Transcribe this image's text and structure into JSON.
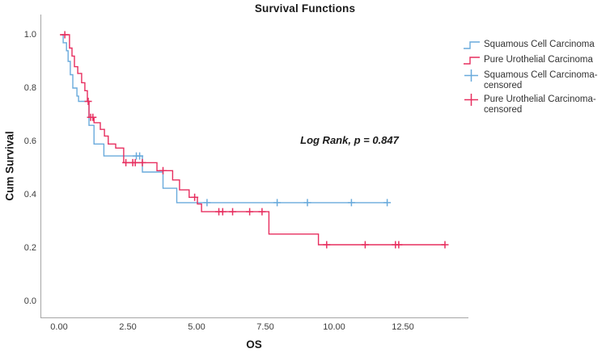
{
  "title": "Survival Functions",
  "colors": {
    "squamous": "#69aadc",
    "urothelial": "#e72e5f",
    "axis_line": "#a6a6a6",
    "tick_text": "#3c3c3c",
    "title_text": "#1a1a1a"
  },
  "legend": {
    "items": [
      {
        "label": "Squamous Cell Carcinoma",
        "marker": "step-line",
        "color_key": "squamous"
      },
      {
        "label": "Pure Urothelial Carcinoma",
        "marker": "step-line",
        "color_key": "urothelial"
      },
      {
        "label": "Squamous Cell Carcinoma-censored",
        "marker": "plus",
        "color_key": "squamous"
      },
      {
        "label": "Pure Urothelial Carcinoma-censored",
        "marker": "plus",
        "color_key": "urothelial"
      }
    ]
  },
  "chart_data": {
    "type": "line",
    "subtype": "kaplan-meier-step",
    "title": "Survival Functions",
    "xlabel": "OS",
    "ylabel": "Cum Survival",
    "annotation": "Log Rank, p = 0.847",
    "legend_position": "right",
    "grid": false,
    "xlim": [
      -0.68,
      14.85
    ],
    "ylim": [
      -0.06,
      1.08
    ],
    "xticks": {
      "values": [
        0,
        2.5,
        5,
        7.5,
        10,
        12.5
      ],
      "labels": [
        "0.00",
        "2.50",
        "5.00",
        "7.50",
        "10.00",
        "12.50"
      ]
    },
    "yticks": {
      "values": [
        0,
        0.2,
        0.4,
        0.6,
        0.8,
        1.0
      ],
      "labels": [
        "0.0",
        "0.2",
        "0.4",
        "0.6",
        "0.8",
        "1.0"
      ]
    },
    "series": [
      {
        "name": "Squamous Cell Carcinoma",
        "color_key": "squamous",
        "start_t": 0.05,
        "end_t": 11.9,
        "drops": [
          [
            0.12,
            0.97
          ],
          [
            0.24,
            0.94
          ],
          [
            0.3,
            0.9
          ],
          [
            0.38,
            0.85
          ],
          [
            0.47,
            0.8
          ],
          [
            0.62,
            0.77
          ],
          [
            0.68,
            0.75
          ],
          [
            1.06,
            0.66
          ],
          [
            1.24,
            0.59
          ],
          [
            1.6,
            0.545
          ],
          [
            3.0,
            0.485
          ],
          [
            3.75,
            0.424
          ],
          [
            4.25,
            0.37
          ]
        ],
        "censors": [
          [
            2.78,
            0.545
          ],
          [
            2.9,
            0.545
          ],
          [
            5.35,
            0.37
          ],
          [
            7.9,
            0.37
          ],
          [
            9.0,
            0.37
          ],
          [
            10.6,
            0.37
          ],
          [
            11.9,
            0.37
          ]
        ]
      },
      {
        "name": "Pure Urothelial Carcinoma",
        "color_key": "urothelial",
        "start_t": 0.0,
        "end_t": 14.0,
        "drops": [
          [
            0.35,
            0.95
          ],
          [
            0.44,
            0.92
          ],
          [
            0.53,
            0.88
          ],
          [
            0.65,
            0.855
          ],
          [
            0.79,
            0.82
          ],
          [
            0.91,
            0.79
          ],
          [
            1.0,
            0.75
          ],
          [
            1.06,
            0.69
          ],
          [
            1.24,
            0.67
          ],
          [
            1.47,
            0.645
          ],
          [
            1.62,
            0.62
          ],
          [
            1.76,
            0.59
          ],
          [
            2.03,
            0.575
          ],
          [
            2.32,
            0.52
          ],
          [
            3.53,
            0.49
          ],
          [
            4.1,
            0.455
          ],
          [
            4.35,
            0.418
          ],
          [
            4.7,
            0.39
          ],
          [
            5.0,
            0.365
          ],
          [
            5.15,
            0.336
          ],
          [
            7.6,
            0.252
          ],
          [
            9.4,
            0.212
          ]
        ],
        "censors": [
          [
            0.18,
            1.0
          ],
          [
            1.03,
            0.75
          ],
          [
            1.12,
            0.69
          ],
          [
            1.2,
            0.69
          ],
          [
            2.4,
            0.52
          ],
          [
            2.65,
            0.52
          ],
          [
            2.74,
            0.52
          ],
          [
            3.0,
            0.52
          ],
          [
            3.75,
            0.49
          ],
          [
            4.9,
            0.39
          ],
          [
            5.78,
            0.336
          ],
          [
            5.92,
            0.336
          ],
          [
            6.28,
            0.336
          ],
          [
            6.9,
            0.336
          ],
          [
            7.35,
            0.336
          ],
          [
            9.7,
            0.212
          ],
          [
            11.1,
            0.212
          ],
          [
            12.2,
            0.212
          ],
          [
            12.32,
            0.212
          ],
          [
            14.0,
            0.212
          ]
        ]
      }
    ]
  }
}
